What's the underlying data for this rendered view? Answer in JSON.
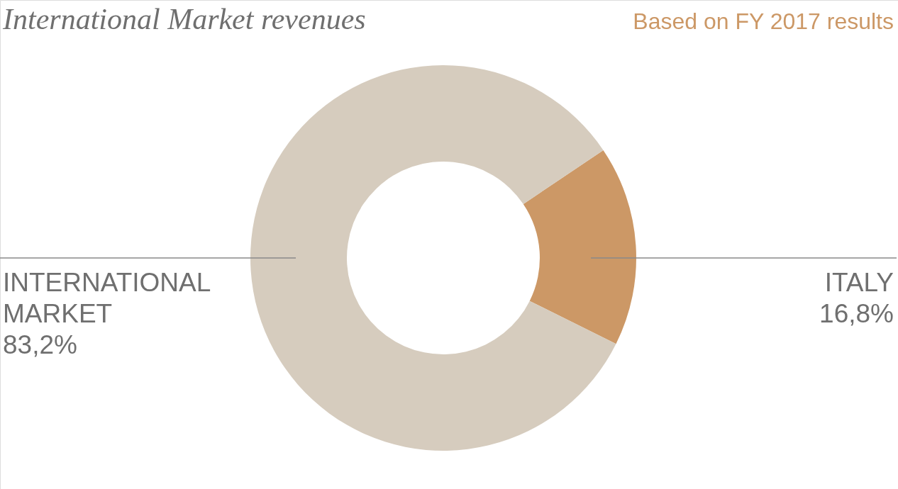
{
  "chart_data": {
    "type": "donut",
    "title": "International Market revenues",
    "subtitle": "Based on FY 2017 results",
    "categories": [
      "ITALY",
      "INTERNATIONAL MARKET"
    ],
    "values": [
      16.8,
      83.2
    ],
    "colors": [
      "#cc9866",
      "#d6ccbe"
    ],
    "value_labels": [
      "16,8%",
      "83,2%"
    ]
  }
}
